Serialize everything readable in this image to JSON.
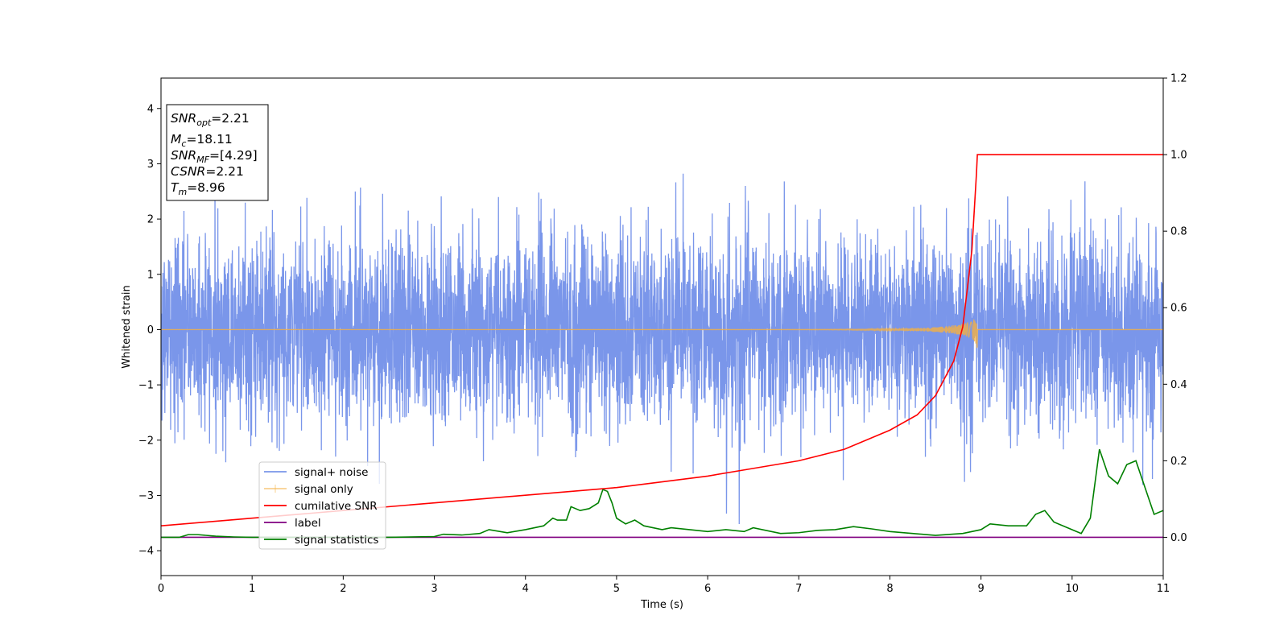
{
  "chart_data": {
    "type": "line",
    "title": "",
    "xlabel": "Time (s)",
    "ylabel": "Whitened strain",
    "xlim": [
      0,
      11
    ],
    "ylim": [
      -4.45,
      4.55
    ],
    "ylim_right": [
      -0.1,
      1.2
    ],
    "x_ticks": [
      0,
      1,
      2,
      3,
      4,
      5,
      6,
      7,
      8,
      9,
      10,
      11
    ],
    "y_ticks": [
      -4,
      -3,
      -2,
      -1,
      0,
      1,
      2,
      3,
      4
    ],
    "y_ticks_right": [
      0.0,
      0.2,
      0.4,
      0.6,
      0.8,
      1.0,
      1.2
    ],
    "grid": false,
    "legend_position": "lower-left",
    "annotation": [
      {
        "sym": "SNR",
        "sub": "opt",
        "val": "=2.21"
      },
      {
        "sym": "M",
        "sub": "c",
        "val": "=18.11"
      },
      {
        "sym": "SNR",
        "sub": "MF",
        "val": "=[4.29]"
      },
      {
        "sym": "CSNR",
        "sub": "",
        "val": "=2.21"
      },
      {
        "sym": "T",
        "sub": "m",
        "val": "=8.96"
      }
    ],
    "series": [
      {
        "name": "signal+ noise",
        "color": "#4169e1",
        "axis": "left",
        "noise_std": 0.85,
        "x_range": [
          0,
          11
        ]
      },
      {
        "name": "signal only",
        "color": "#f5b041",
        "axis": "left",
        "chirp_end": 8.96,
        "peak_amplitude": 0.45
      },
      {
        "name": "cumilative SNR",
        "color": "#ff0000",
        "axis": "right",
        "x": [
          0,
          1,
          2,
          3,
          4,
          5,
          6,
          6.5,
          7,
          7.5,
          8,
          8.3,
          8.5,
          8.7,
          8.8,
          8.9,
          8.95,
          8.96,
          9.5,
          10,
          11
        ],
        "y": [
          0.03,
          0.05,
          0.07,
          0.09,
          0.11,
          0.13,
          0.16,
          0.18,
          0.2,
          0.23,
          0.28,
          0.32,
          0.37,
          0.46,
          0.55,
          0.75,
          0.95,
          1.0,
          1.0,
          1.0,
          1.0
        ]
      },
      {
        "name": "label",
        "color": "#800080",
        "axis": "right",
        "x": [
          0,
          11
        ],
        "y": [
          0.0,
          0.0
        ]
      },
      {
        "name": "signal statistics",
        "color": "#008000",
        "axis": "right",
        "x": [
          0,
          0.2,
          0.3,
          0.4,
          0.6,
          0.8,
          1.0,
          1.5,
          2.0,
          2.5,
          3.0,
          3.1,
          3.3,
          3.5,
          3.6,
          3.8,
          4.0,
          4.1,
          4.2,
          4.3,
          4.35,
          4.45,
          4.5,
          4.6,
          4.7,
          4.8,
          4.85,
          4.9,
          4.95,
          5.0,
          5.1,
          5.2,
          5.3,
          5.5,
          5.6,
          5.8,
          6.0,
          6.2,
          6.4,
          6.5,
          6.8,
          7.0,
          7.2,
          7.4,
          7.6,
          7.8,
          8.0,
          8.5,
          8.8,
          9.0,
          9.1,
          9.3,
          9.5,
          9.6,
          9.7,
          9.8,
          10.0,
          10.1,
          10.2,
          10.3,
          10.4,
          10.5,
          10.6,
          10.7,
          10.8,
          10.9,
          11.0
        ],
        "y": [
          0.0,
          0.0,
          0.007,
          0.007,
          0.003,
          0.001,
          0.0,
          0.0,
          0.0,
          0.0,
          0.002,
          0.008,
          0.006,
          0.01,
          0.02,
          0.012,
          0.02,
          0.025,
          0.03,
          0.05,
          0.045,
          0.045,
          0.08,
          0.07,
          0.075,
          0.09,
          0.125,
          0.12,
          0.09,
          0.05,
          0.035,
          0.045,
          0.03,
          0.02,
          0.025,
          0.02,
          0.015,
          0.02,
          0.015,
          0.025,
          0.01,
          0.012,
          0.018,
          0.02,
          0.028,
          0.022,
          0.015,
          0.005,
          0.01,
          0.02,
          0.035,
          0.03,
          0.03,
          0.06,
          0.07,
          0.04,
          0.02,
          0.01,
          0.05,
          0.23,
          0.16,
          0.14,
          0.19,
          0.2,
          0.13,
          0.06,
          0.07
        ]
      }
    ]
  }
}
